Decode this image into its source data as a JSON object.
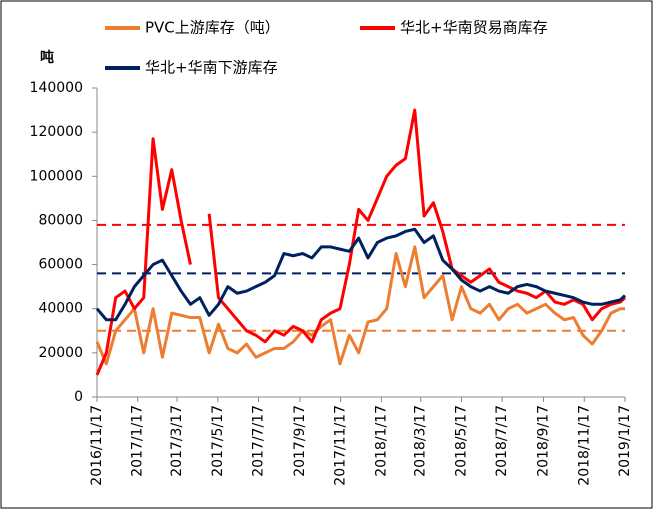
{
  "chart_data": {
    "type": "line",
    "y_label": "吨",
    "x": [
      "2016/11/17",
      "2016/12/1",
      "2016/12/15",
      "2016/12/29",
      "2017/1/12",
      "2017/1/26",
      "2017/2/9",
      "2017/2/23",
      "2017/3/9",
      "2017/3/23",
      "2017/4/6",
      "2017/4/20",
      "2017/5/4",
      "2017/5/18",
      "2017/6/1",
      "2017/6/15",
      "2017/6/29",
      "2017/7/13",
      "2017/7/27",
      "2017/8/10",
      "2017/8/24",
      "2017/9/7",
      "2017/9/21",
      "2017/10/5",
      "2017/10/19",
      "2017/11/2",
      "2017/11/16",
      "2017/11/30",
      "2017/12/14",
      "2017/12/28",
      "2018/1/11",
      "2018/1/25",
      "2018/2/8",
      "2018/2/22",
      "2018/3/8",
      "2018/3/22",
      "2018/4/5",
      "2018/4/19",
      "2018/5/3",
      "2018/5/17",
      "2018/5/31",
      "2018/6/14",
      "2018/6/28",
      "2018/7/12",
      "2018/7/26",
      "2018/8/9",
      "2018/8/23",
      "2018/9/6",
      "2018/9/20",
      "2018/10/4",
      "2018/10/18",
      "2018/11/1",
      "2018/11/15",
      "2018/11/29",
      "2018/12/13",
      "2018/12/27",
      "2019/1/10",
      "2019/1/17"
    ],
    "series": [
      {
        "name": "PVC上游库存（吨）",
        "color": "#ed7d31",
        "values": [
          25000,
          15000,
          30000,
          35000,
          40000,
          20000,
          40000,
          18000,
          38000,
          37000,
          36000,
          36000,
          20000,
          33000,
          22000,
          20000,
          24000,
          18000,
          20000,
          22000,
          22000,
          25000,
          30000,
          28000,
          32000,
          35000,
          15000,
          28000,
          20000,
          34000,
          35000,
          40000,
          65000,
          50000,
          68000,
          45000,
          50000,
          55000,
          35000,
          50000,
          40000,
          38000,
          42000,
          35000,
          40000,
          42000,
          38000,
          40000,
          42000,
          38000,
          35000,
          36000,
          28000,
          24000,
          30000,
          38000,
          40000,
          40000
        ]
      },
      {
        "name": "华北+华南贸易商库存",
        "color": "#ff0000",
        "values": [
          10000,
          20000,
          45000,
          48000,
          40000,
          45000,
          117000,
          85000,
          103000,
          80000,
          60000,
          null,
          83000,
          45000,
          40000,
          35000,
          30000,
          28000,
          25000,
          30000,
          28000,
          32000,
          30000,
          25000,
          35000,
          38000,
          40000,
          60000,
          85000,
          80000,
          90000,
          100000,
          105000,
          108000,
          130000,
          82000,
          88000,
          75000,
          58000,
          55000,
          52000,
          55000,
          58000,
          52000,
          50000,
          48000,
          47000,
          45000,
          48000,
          43000,
          42000,
          44000,
          42000,
          35000,
          40000,
          42000,
          43000,
          45000
        ]
      },
      {
        "name": "华北+华南下游库存",
        "color": "#002060",
        "values": [
          40000,
          35000,
          35000,
          42000,
          50000,
          55000,
          60000,
          62000,
          55000,
          48000,
          42000,
          45000,
          37000,
          42000,
          50000,
          47000,
          48000,
          50000,
          52000,
          55000,
          65000,
          64000,
          65000,
          63000,
          68000,
          68000,
          67000,
          66000,
          72000,
          63000,
          70000,
          72000,
          73000,
          75000,
          76000,
          70000,
          73000,
          62000,
          58000,
          53000,
          50000,
          48000,
          50000,
          48000,
          47000,
          50000,
          51000,
          50000,
          48000,
          47000,
          46000,
          45000,
          43000,
          42000,
          42000,
          43000,
          44000,
          46000
        ]
      }
    ],
    "reference_lines": [
      {
        "value": 78000,
        "color": "#ff0000"
      },
      {
        "value": 56000,
        "color": "#002060"
      },
      {
        "value": 30000,
        "color": "#ed7d31"
      }
    ],
    "xlim": [
      "2016/11/17",
      "2019/1/17"
    ],
    "xticks": [
      "2016/11/17",
      "2017/1/17",
      "2017/3/17",
      "2017/5/17",
      "2017/7/17",
      "2017/9/17",
      "2017/11/17",
      "2018/1/17",
      "2018/3/17",
      "2018/5/17",
      "2018/7/17",
      "2018/9/17",
      "2018/11/17",
      "2019/1/17"
    ],
    "ylim": [
      0,
      140000
    ],
    "yticks": [
      0,
      20000,
      40000,
      60000,
      80000,
      100000,
      120000,
      140000
    ],
    "grid": false
  }
}
